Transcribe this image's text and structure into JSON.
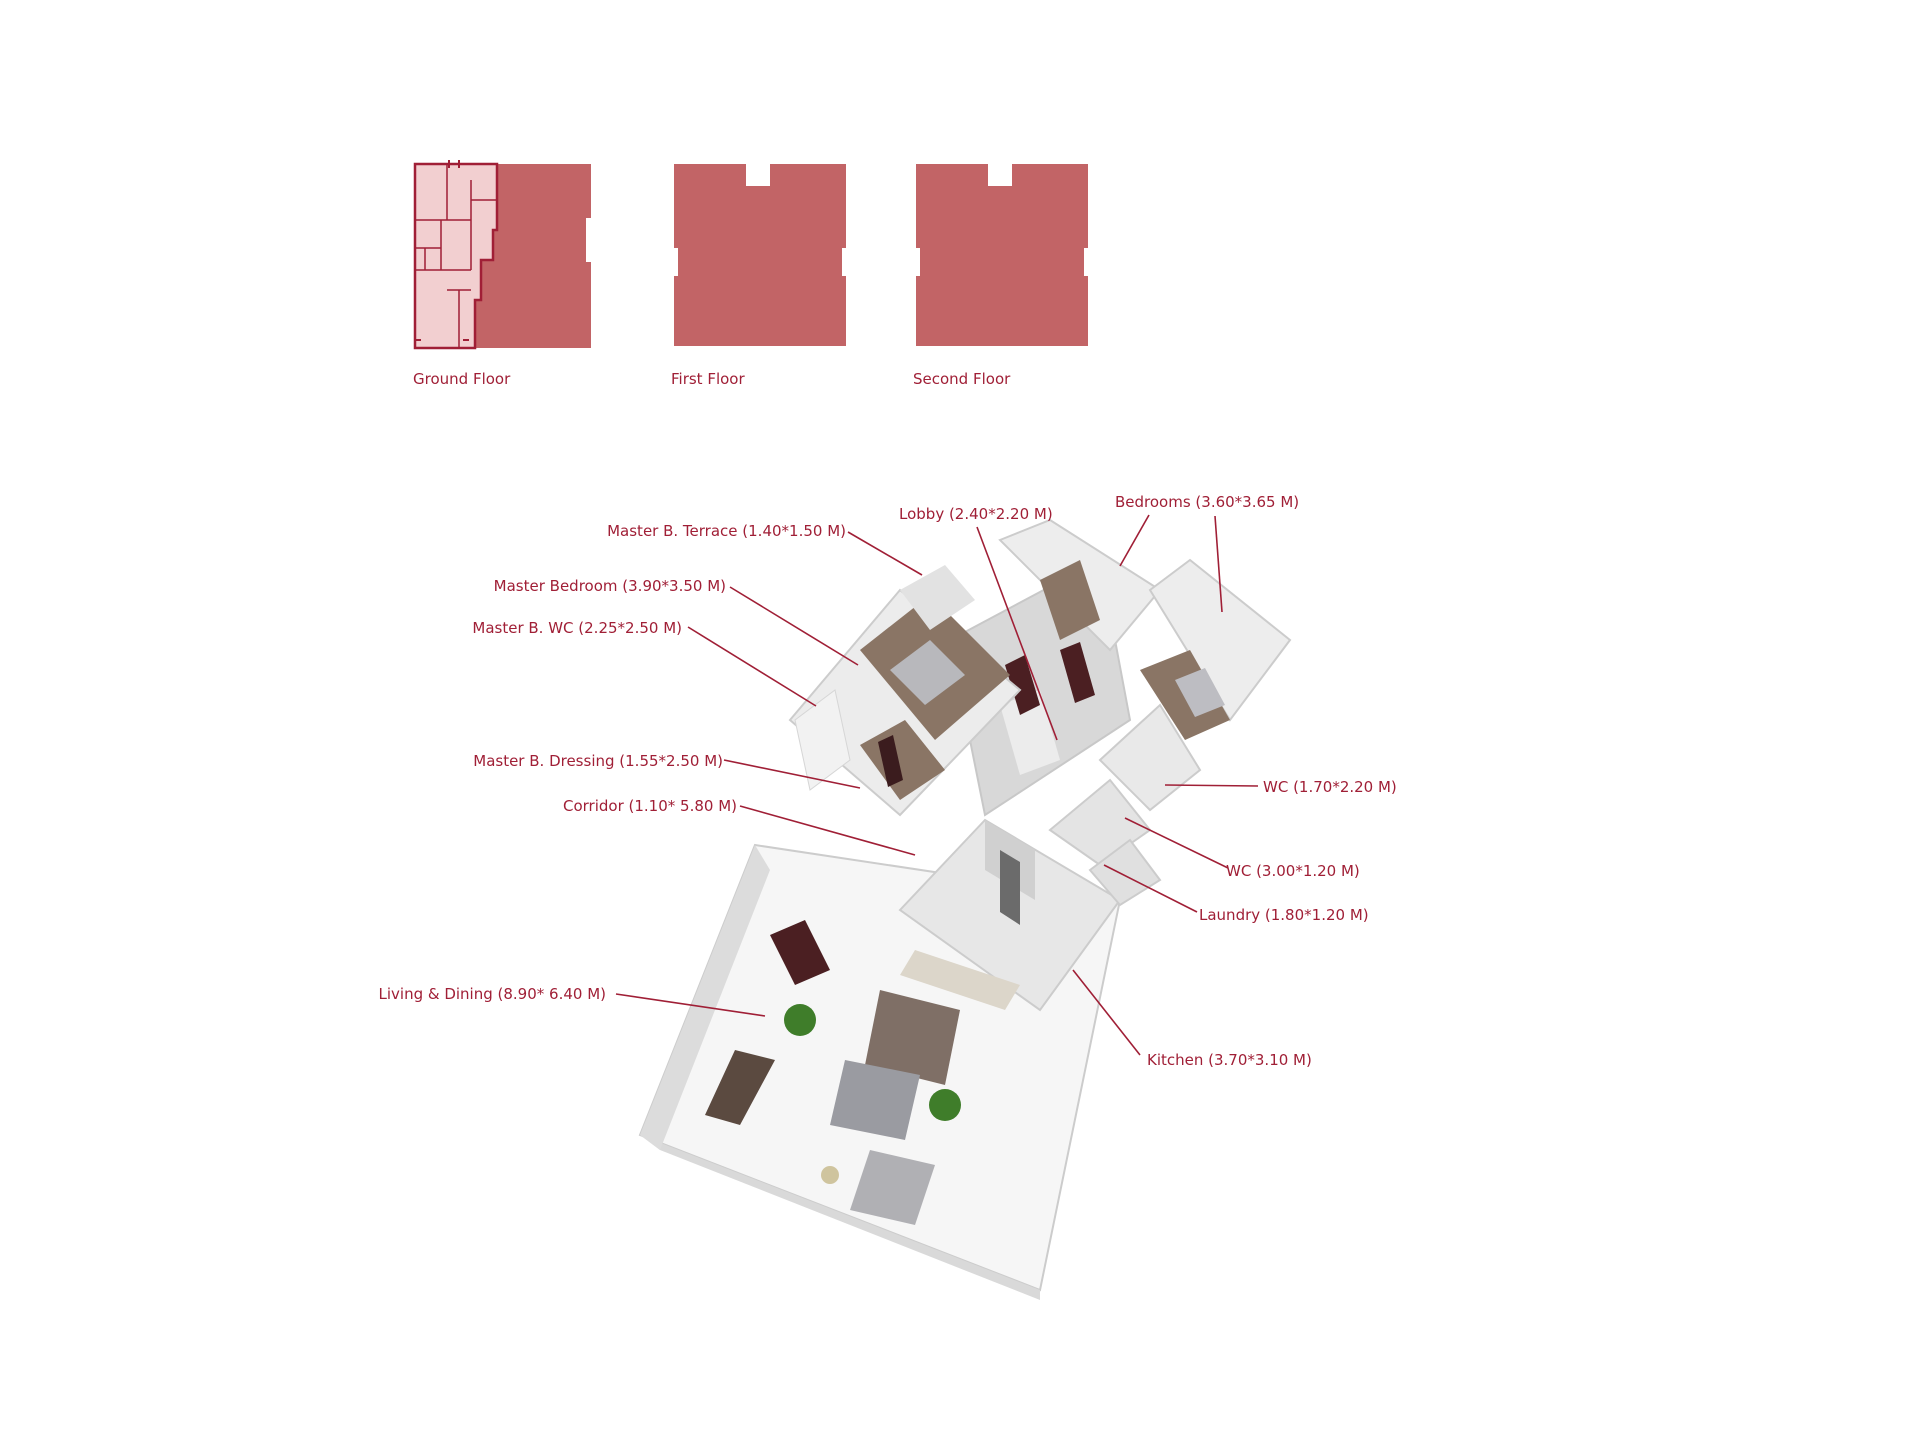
{
  "colors": {
    "accent": "#a01f36",
    "floor_fill": "#c26466",
    "floor_highlight": "#f2cfd0",
    "wall": "#e4e4e4",
    "wood_floor": "#8a7565",
    "tile_floor": "#eeeeee"
  },
  "floors": [
    {
      "label": "Ground Floor",
      "highlighted": true
    },
    {
      "label": "First Floor",
      "highlighted": false
    },
    {
      "label": "Second Floor",
      "highlighted": false
    }
  ],
  "rooms": [
    {
      "label": "Master B. Terrace (1.40*1.50 M)"
    },
    {
      "label": "Master Bedroom (3.90*3.50 M)"
    },
    {
      "label": "Master B. WC (2.25*2.50 M)"
    },
    {
      "label": "Master B. Dressing (1.55*2.50 M)"
    },
    {
      "label": "Corridor (1.10* 5.80 M)"
    },
    {
      "label": "Living & Dining (8.90* 6.40 M)"
    },
    {
      "label": "Lobby (2.40*2.20 M)"
    },
    {
      "label": "Bedrooms (3.60*3.65 M)"
    },
    {
      "label": "WC (1.70*2.20 M)"
    },
    {
      "label": "WC (3.00*1.20 M)"
    },
    {
      "label": "Laundry (1.80*1.20 M)"
    },
    {
      "label": "Kitchen (3.70*3.10 M)"
    }
  ]
}
